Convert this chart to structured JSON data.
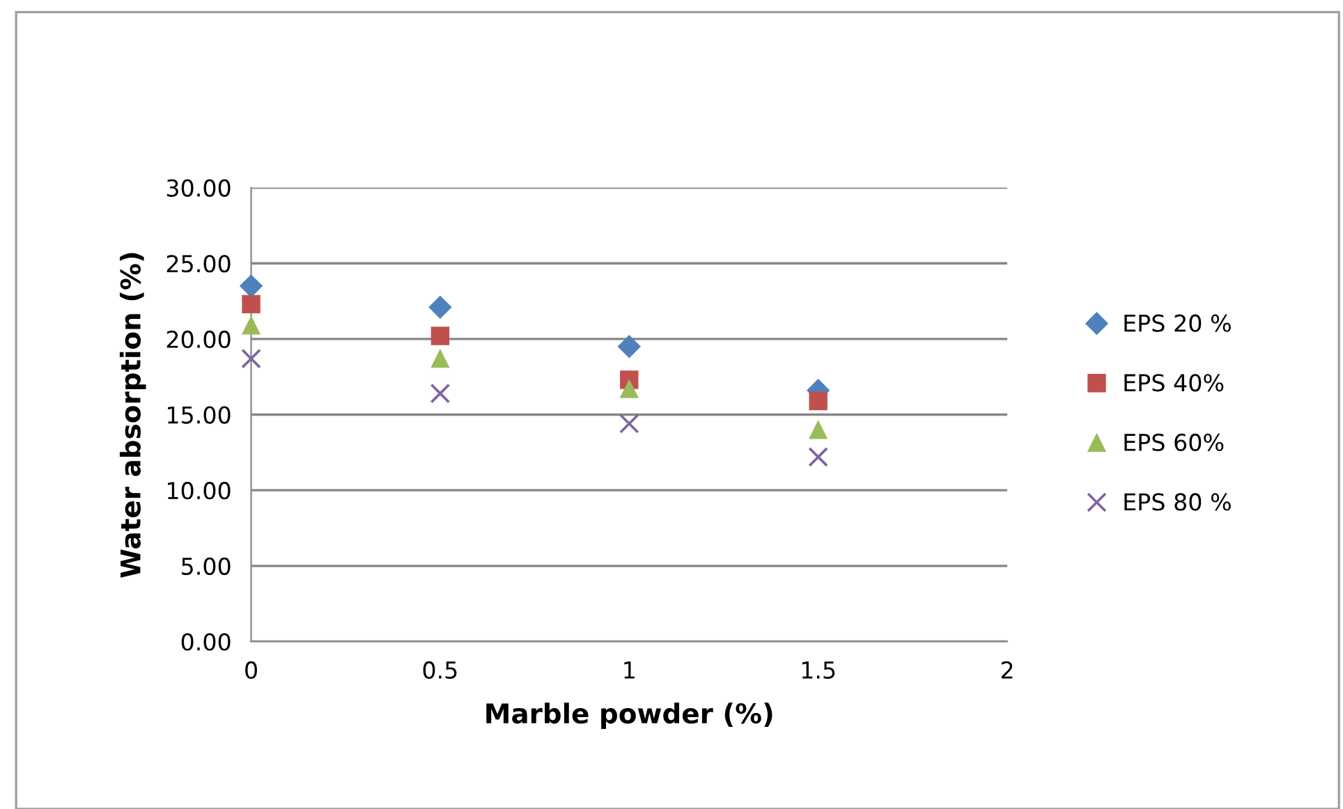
{
  "chart_data": {
    "type": "scatter",
    "xlabel": "Marble powder (%)",
    "ylabel": "Water absorption (%)",
    "x": [
      0,
      0.5,
      1,
      1.5
    ],
    "series": [
      {
        "name": "EPS 20 %",
        "color": "#4f81bd",
        "marker": "diamond",
        "values": [
          23.5,
          22.1,
          19.5,
          16.6
        ]
      },
      {
        "name": "EPS 40%",
        "color": "#c0504d",
        "marker": "square",
        "values": [
          22.3,
          20.2,
          17.3,
          15.9
        ]
      },
      {
        "name": "EPS 60%",
        "color": "#9bbb59",
        "marker": "triangle",
        "values": [
          20.9,
          18.7,
          16.7,
          14.0
        ]
      },
      {
        "name": "EPS 80 %",
        "color": "#8064a2",
        "marker": "cross",
        "values": [
          18.7,
          16.4,
          14.4,
          12.2
        ]
      }
    ],
    "xlim": [
      0,
      2
    ],
    "xticks": [
      0,
      0.5,
      1,
      1.5,
      2
    ],
    "ylim": [
      0,
      30
    ],
    "yticks": [
      {
        "value": 0,
        "label": "0.00"
      },
      {
        "value": 5,
        "label": "5.00"
      },
      {
        "value": 10,
        "label": "10.00"
      },
      {
        "value": 15,
        "label": "15.00"
      },
      {
        "value": 20,
        "label": "20.00"
      },
      {
        "value": 25,
        "label": "25.00"
      },
      {
        "value": 30,
        "label": "30.00"
      }
    ],
    "grid": "y",
    "legend": "right"
  }
}
